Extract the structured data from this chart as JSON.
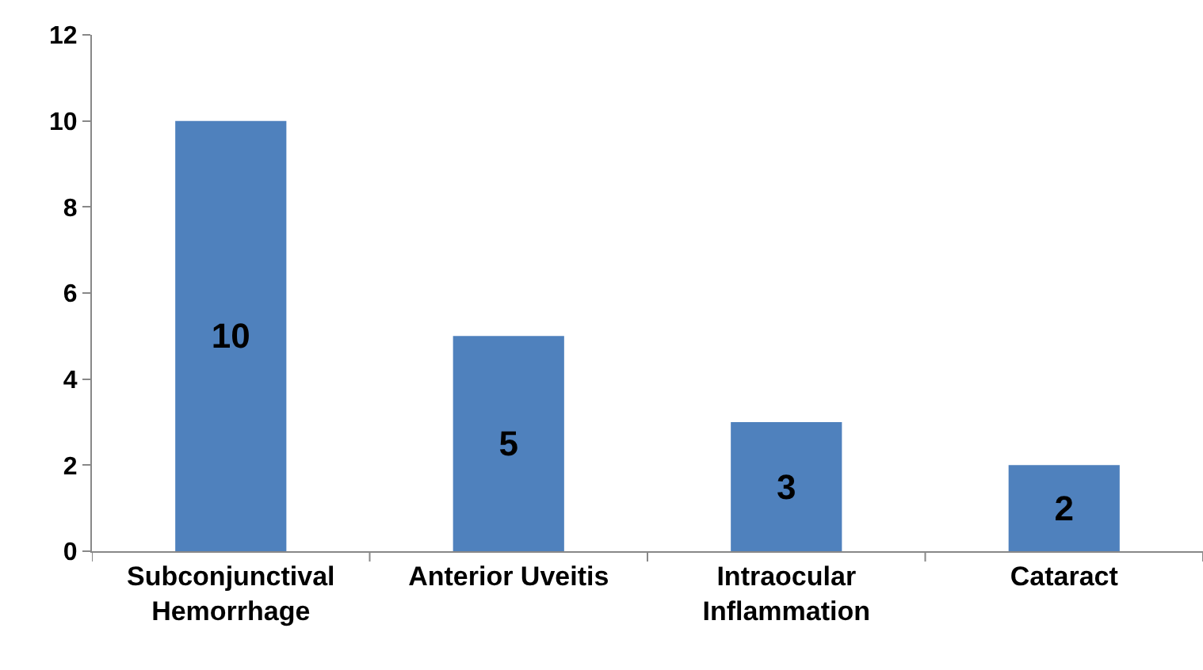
{
  "chart_data": {
    "type": "bar",
    "categories": [
      "Subconjunctival Hemorrhage",
      "Anterior Uveitis",
      "Intraocular Inflammation",
      "Cataract"
    ],
    "values": [
      10,
      5,
      3,
      2
    ],
    "color": "#4f81bd",
    "ylim": [
      0,
      12
    ],
    "yticks": [
      0,
      2,
      4,
      6,
      8,
      10,
      12
    ],
    "grid": false,
    "legend": false,
    "data_labels": true
  }
}
